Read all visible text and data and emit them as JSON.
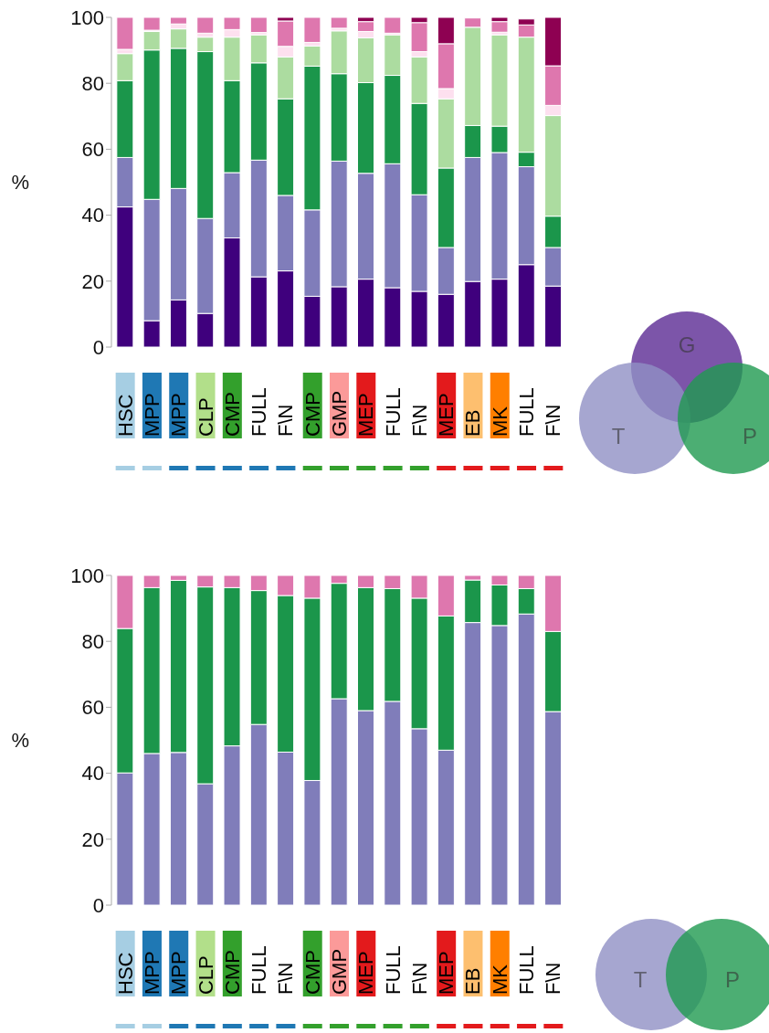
{
  "chart_data": [
    {
      "type": "bar",
      "stacked": true,
      "ylabel": "%",
      "ylim": [
        0,
        100
      ],
      "yticks": [
        0,
        20,
        40,
        60,
        80,
        100
      ],
      "categories": [
        "HSC",
        "MPP",
        "MPP",
        "CLP",
        "CMP",
        "FULL",
        "F\\N",
        "CMP",
        "GMP",
        "MEP",
        "FULL",
        "F\\N",
        "MEP",
        "EB",
        "MK",
        "FULL",
        "F\\N"
      ],
      "series": [
        {
          "color": "#3f007d",
          "values": [
            42.5,
            8.0,
            14.3,
            10.2,
            33.1,
            21.3,
            23.1,
            15.4,
            18.3,
            20.6,
            18.0,
            16.9,
            16.0,
            19.9,
            20.6,
            25.0,
            18.5
          ]
        },
        {
          "color": "#807dba",
          "values": [
            15.0,
            36.8,
            33.8,
            28.8,
            19.8,
            35.4,
            22.9,
            26.2,
            38.1,
            32.1,
            37.6,
            29.3,
            14.2,
            37.6,
            38.4,
            29.7,
            11.7
          ]
        },
        {
          "color": "#1b964b",
          "values": [
            23.3,
            45.3,
            42.5,
            50.6,
            27.9,
            29.5,
            29.3,
            43.6,
            26.5,
            27.5,
            26.8,
            27.7,
            24.1,
            9.7,
            8.0,
            4.4,
            9.5
          ]
        },
        {
          "color": "#acdca0",
          "values": [
            8.2,
            5.6,
            5.9,
            4.4,
            13.2,
            8.5,
            12.7,
            6.1,
            13.0,
            13.6,
            12.3,
            14.1,
            21.0,
            29.8,
            27.7,
            34.9,
            30.5
          ]
        },
        {
          "color": "#fde0ef",
          "values": [
            1.3,
            0.4,
            1.5,
            1.2,
            2.3,
            0.7,
            3.2,
            1.1,
            0.8,
            1.9,
            0.5,
            1.6,
            3.1,
            null,
            0.8,
            null,
            3.1
          ]
        },
        {
          "color": "#de77ae",
          "values": [
            9.7,
            3.9,
            2.0,
            4.8,
            3.7,
            4.6,
            7.7,
            7.6,
            3.3,
            3.0,
            4.8,
            8.8,
            13.6,
            2.8,
            3.2,
            3.7,
            12.0
          ]
        },
        {
          "color": "#8e0152",
          "values": [
            0,
            0,
            0,
            0,
            0,
            0,
            1.1,
            0,
            0,
            1.3,
            0,
            1.6,
            8.0,
            0,
            1.3,
            1.8,
            14.7
          ]
        }
      ],
      "annotations": [
        "G",
        "T",
        "P"
      ]
    },
    {
      "type": "bar",
      "stacked": true,
      "ylabel": "%",
      "ylim": [
        0,
        100
      ],
      "yticks": [
        0,
        20,
        40,
        60,
        80,
        100
      ],
      "categories": [
        "HSC",
        "MPP",
        "MPP",
        "CLP",
        "CMP",
        "FULL",
        "F\\N",
        "CMP",
        "GMP",
        "MEP",
        "FULL",
        "F\\N",
        "MEP",
        "EB",
        "MK",
        "FULL",
        "F\\N"
      ],
      "series": [
        {
          "color": "#807dba",
          "values": [
            40.1,
            46.0,
            46.3,
            36.8,
            48.3,
            54.8,
            46.4,
            37.8,
            62.6,
            59.0,
            61.8,
            53.5,
            47.0,
            85.7,
            84.8,
            88.3,
            58.7
          ]
        },
        {
          "color": "#1b964b",
          "values": [
            43.8,
            50.3,
            52.2,
            59.7,
            48.0,
            40.6,
            47.5,
            55.3,
            35.0,
            37.3,
            34.2,
            39.6,
            40.7,
            12.9,
            12.3,
            7.7,
            24.3
          ]
        },
        {
          "color": "#de77ae",
          "values": [
            16.1,
            3.7,
            1.5,
            3.5,
            3.7,
            4.6,
            6.1,
            6.9,
            2.4,
            3.7,
            4.0,
            6.9,
            12.3,
            1.4,
            2.9,
            4.0,
            17.0
          ]
        }
      ],
      "annotations": [
        "T",
        "P"
      ]
    }
  ]
}
